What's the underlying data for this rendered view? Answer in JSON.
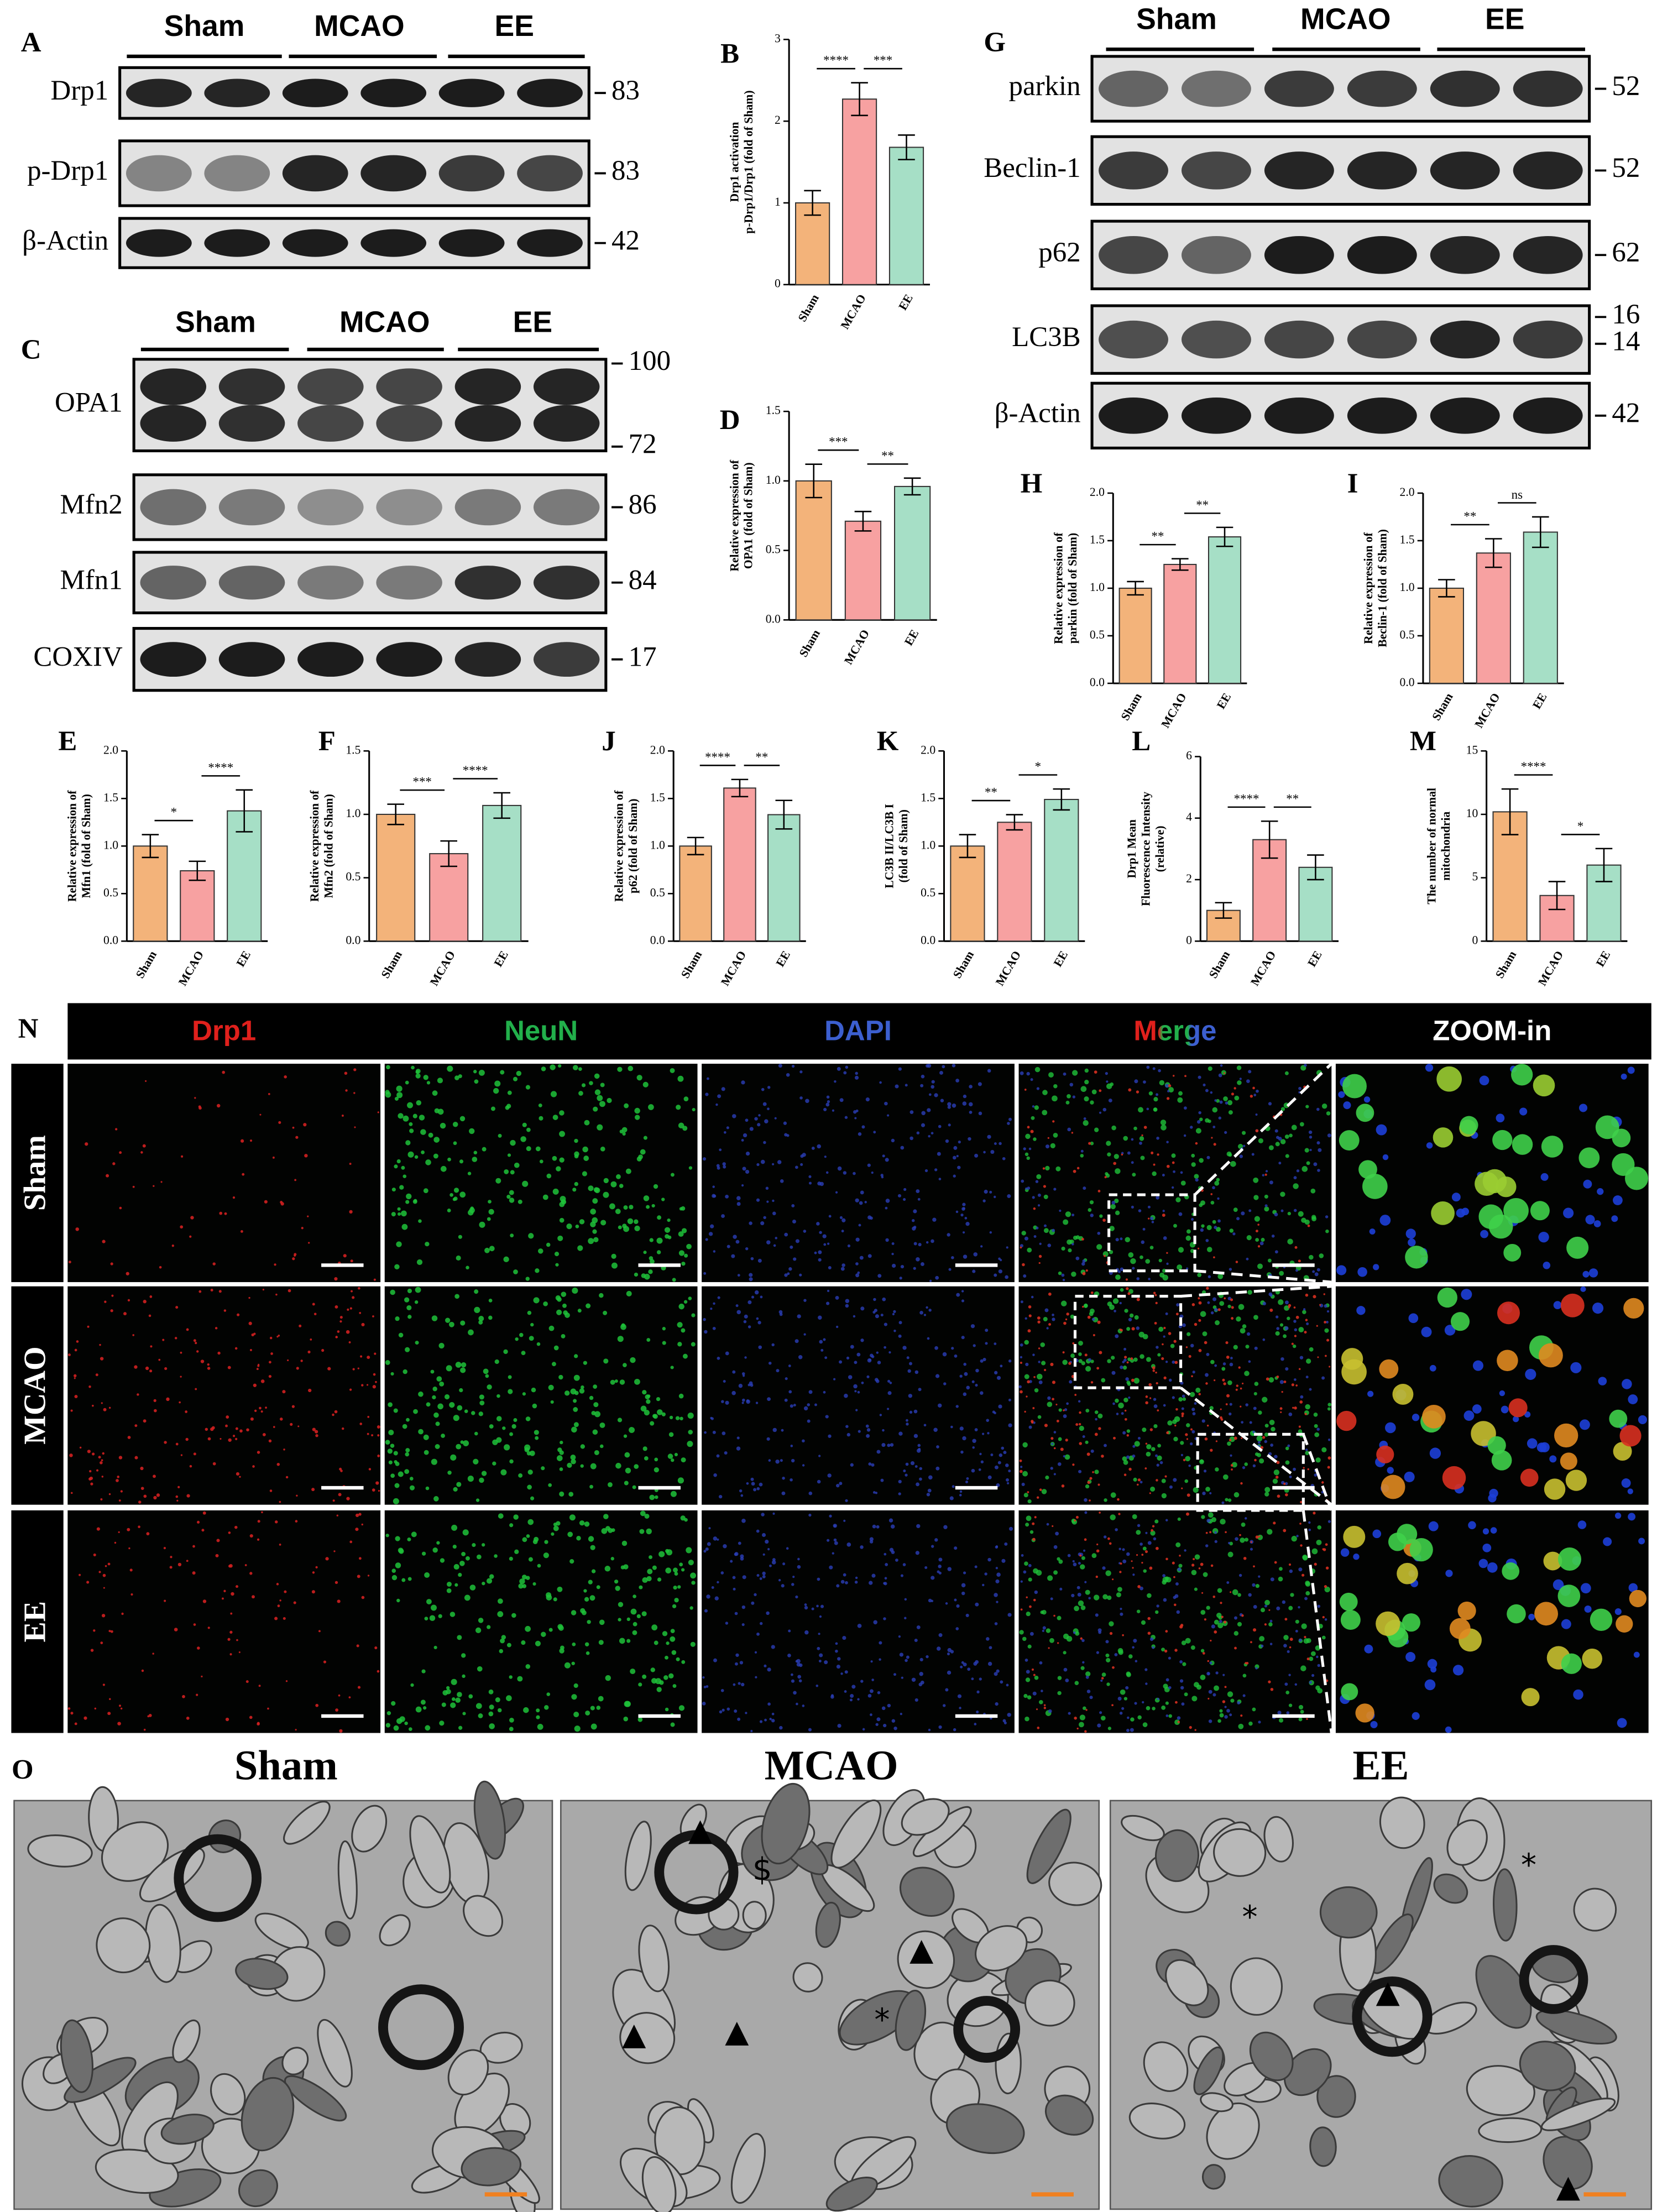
{
  "panel_labels": [
    "A",
    "B",
    "C",
    "D",
    "E",
    "F",
    "G",
    "H",
    "I",
    "J",
    "K",
    "L",
    "M",
    "N",
    "O"
  ],
  "blots": [
    {
      "groups": [
        "Sham",
        "MCAO",
        "EE"
      ],
      "rows": [
        {
          "label": "Drp1",
          "markers": [
            83
          ]
        },
        {
          "label": "p-Drp1",
          "markers": [
            83
          ]
        },
        {
          "label": "β-Actin",
          "markers": [
            42
          ]
        }
      ]
    },
    {
      "groups": [
        "Sham",
        "MCAO",
        "EE"
      ],
      "rows": [
        {
          "label": "OPA1",
          "markers": [
            100,
            72
          ]
        },
        {
          "label": "Mfn2",
          "markers": [
            86
          ]
        },
        {
          "label": "Mfn1",
          "markers": [
            84
          ]
        },
        {
          "label": "COXIV",
          "markers": [
            17
          ]
        }
      ]
    },
    {
      "groups": [
        "Sham",
        "MCAO",
        "EE"
      ],
      "rows": [
        {
          "label": "parkin",
          "markers": [
            52
          ]
        },
        {
          "label": "Beclin-1",
          "markers": [
            52
          ]
        },
        {
          "label": "p62",
          "markers": [
            62
          ]
        },
        {
          "label": "LC3B",
          "markers": [
            16,
            14
          ]
        },
        {
          "label": "β-Actin",
          "markers": [
            42
          ]
        }
      ]
    }
  ],
  "chart_data": [
    {
      "type": "bar",
      "ylabel": [
        "Drp1 activation",
        "p-Drp1/Drp1 (fold of Sham)"
      ],
      "categories": [
        "Sham",
        "MCAO",
        "EE"
      ],
      "values": [
        1.0,
        2.27,
        1.68
      ],
      "errors": [
        0.15,
        0.2,
        0.15
      ],
      "colors": [
        "#f3b37a",
        "#f7a1a1",
        "#a6dfc6"
      ],
      "ylim": [
        0,
        3
      ],
      "yticks": [
        0,
        1,
        2,
        3
      ],
      "significance": [
        "****",
        "***"
      ]
    },
    {
      "type": "bar",
      "ylabel": [
        "Relative expression of",
        "OPA1 (fold of Sham)"
      ],
      "categories": [
        "Sham",
        "MCAO",
        "EE"
      ],
      "values": [
        1.0,
        0.71,
        0.96
      ],
      "errors": [
        0.12,
        0.07,
        0.06
      ],
      "colors": [
        "#f3b37a",
        "#f7a1a1",
        "#a6dfc6"
      ],
      "ylim": [
        0,
        1.5
      ],
      "yticks": [
        {
          "value": 0,
          "label": "0.0"
        },
        0.5,
        {
          "value": 1,
          "label": "1.0"
        },
        1.5
      ],
      "significance": [
        "***",
        "**"
      ]
    },
    {
      "type": "bar",
      "ylabel": [
        "Relative expression of",
        "parkin (fold of Sham)"
      ],
      "categories": [
        "Sham",
        "MCAO",
        "EE"
      ],
      "values": [
        1.0,
        1.25,
        1.54
      ],
      "errors": [
        0.07,
        0.06,
        0.1
      ],
      "colors": [
        "#f3b37a",
        "#f7a1a1",
        "#a6dfc6"
      ],
      "ylim": [
        0,
        2
      ],
      "yticks": [
        {
          "value": 0,
          "label": "0.0"
        },
        0.5,
        {
          "value": 1,
          "label": "1.0"
        },
        1.5,
        {
          "value": 2,
          "label": "2.0"
        }
      ],
      "significance": [
        "**",
        "**"
      ]
    },
    {
      "type": "bar",
      "ylabel": [
        "Relative expression of",
        "Beclin-1 (fold of Sham)"
      ],
      "categories": [
        "Sham",
        "MCAO",
        "EE"
      ],
      "values": [
        1.0,
        1.37,
        1.59
      ],
      "errors": [
        0.09,
        0.15,
        0.16
      ],
      "colors": [
        "#f3b37a",
        "#f7a1a1",
        "#a6dfc6"
      ],
      "ylim": [
        0,
        2
      ],
      "yticks": [
        {
          "value": 0,
          "label": "0.0"
        },
        0.5,
        {
          "value": 1,
          "label": "1.0"
        },
        1.5,
        {
          "value": 2,
          "label": "2.0"
        }
      ],
      "significance": [
        "**",
        "ns"
      ]
    },
    {
      "type": "bar",
      "ylabel": [
        "Relative expression of",
        "Mfn1 (fold of Sham)"
      ],
      "categories": [
        "Sham",
        "MCAO",
        "EE"
      ],
      "values": [
        1.0,
        0.74,
        1.37
      ],
      "errors": [
        0.12,
        0.1,
        0.22
      ],
      "colors": [
        "#f3b37a",
        "#f7a1a1",
        "#a6dfc6"
      ],
      "ylim": [
        0,
        2
      ],
      "yticks": [
        {
          "value": 0,
          "label": "0.0"
        },
        0.5,
        {
          "value": 1,
          "label": "1.0"
        },
        1.5,
        {
          "value": 2,
          "label": "2.0"
        }
      ],
      "significance": [
        "*",
        "****"
      ]
    },
    {
      "type": "bar",
      "ylabel": [
        "Relative expression of",
        "Mfn2 (fold of Sham)"
      ],
      "categories": [
        "Sham",
        "MCAO",
        "EE"
      ],
      "values": [
        1.0,
        0.69,
        1.07
      ],
      "errors": [
        0.08,
        0.1,
        0.1
      ],
      "colors": [
        "#f3b37a",
        "#f7a1a1",
        "#a6dfc6"
      ],
      "ylim": [
        0,
        1.5
      ],
      "yticks": [
        {
          "value": 0,
          "label": "0.0"
        },
        0.5,
        {
          "value": 1,
          "label": "1.0"
        },
        1.5
      ],
      "significance": [
        "***",
        "****"
      ]
    },
    {
      "type": "bar",
      "ylabel": [
        "Relative expression of",
        "p62 (fold of Sham)"
      ],
      "categories": [
        "Sham",
        "MCAO",
        "EE"
      ],
      "values": [
        1.0,
        1.61,
        1.33
      ],
      "errors": [
        0.09,
        0.09,
        0.15
      ],
      "colors": [
        "#f3b37a",
        "#f7a1a1",
        "#a6dfc6"
      ],
      "ylim": [
        0,
        2
      ],
      "yticks": [
        {
          "value": 0,
          "label": "0.0"
        },
        0.5,
        {
          "value": 1,
          "label": "1.0"
        },
        1.5,
        {
          "value": 2,
          "label": "2.0"
        }
      ],
      "significance": [
        "****",
        "**"
      ]
    },
    {
      "type": "bar",
      "ylabel": [
        "LC3B II/LC3B I",
        "(fold of Sham)"
      ],
      "categories": [
        "Sham",
        "MCAO",
        "EE"
      ],
      "values": [
        1.0,
        1.25,
        1.49
      ],
      "errors": [
        0.12,
        0.08,
        0.11
      ],
      "colors": [
        "#f3b37a",
        "#f7a1a1",
        "#a6dfc6"
      ],
      "ylim": [
        0,
        2
      ],
      "yticks": [
        {
          "value": 0,
          "label": "0.0"
        },
        0.5,
        {
          "value": 1,
          "label": "1.0"
        },
        1.5,
        {
          "value": 2,
          "label": "2.0"
        }
      ],
      "significance": [
        "**",
        "*"
      ]
    },
    {
      "type": "bar",
      "ylabel": [
        "Drp1 Mean",
        "Fluorescence Intensity",
        "(relative)"
      ],
      "categories": [
        "Sham",
        "MCAO",
        "EE"
      ],
      "values": [
        1.0,
        3.3,
        2.4
      ],
      "errors": [
        0.25,
        0.6,
        0.4
      ],
      "colors": [
        "#f3b37a",
        "#f7a1a1",
        "#a6dfc6"
      ],
      "ylim": [
        0,
        6
      ],
      "yticks": [
        0,
        2,
        4,
        6
      ],
      "significance": [
        "****",
        "**"
      ]
    },
    {
      "type": "bar",
      "ylabel": [
        "The number of normal",
        "mitochondria"
      ],
      "categories": [
        "Sham",
        "MCAO",
        "EE"
      ],
      "values": [
        10.2,
        3.6,
        6.0
      ],
      "errors": [
        1.8,
        1.1,
        1.3
      ],
      "colors": [
        "#f3b37a",
        "#f7a1a1",
        "#a6dfc6"
      ],
      "ylim": [
        0,
        15
      ],
      "yticks": [
        0,
        5,
        10,
        15
      ],
      "significance": [
        "****",
        "*"
      ]
    }
  ],
  "immunofluorescence": {
    "channels": [
      "Drp1",
      "NeuN",
      "DAPI",
      "Merge",
      "ZOOM-in"
    ],
    "groups": [
      "Sham",
      "MCAO",
      "EE"
    ]
  },
  "electron_microscopy": {
    "groups": [
      "Sham",
      "MCAO",
      "EE"
    ],
    "annotations": [
      [],
      [
        "▲",
        "$",
        "▲",
        "▲",
        "▲",
        "*"
      ],
      [
        "*",
        "*",
        "▲",
        "▲"
      ]
    ]
  }
}
